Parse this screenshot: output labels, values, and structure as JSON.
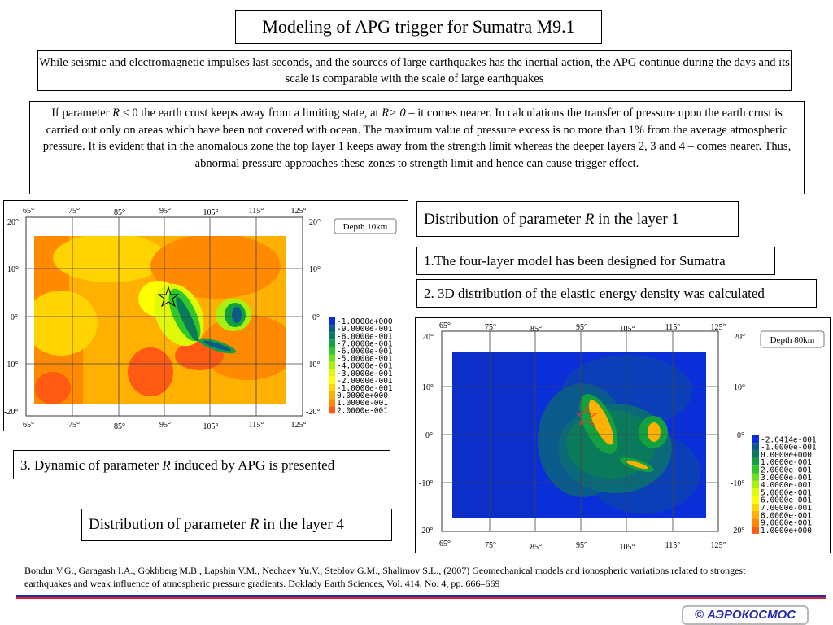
{
  "title": "Modeling of APG trigger for Sumatra M9.1",
  "intro": "While seismic and electromagnetic impulses last seconds, and the sources of large earthquakes has the inertial action, the APG  continue during the days and its scale is comparable with the scale of large earthquakes",
  "explain": {
    "p1": "If parameter ",
    "r1": "R",
    "p2": " < 0 the earth crust keeps away from a limiting state, at ",
    "r2": "R> 0",
    "p3": " – it comes nearer. In calculations the transfer of pressure upon the earth crust is carried out only on areas which have been not covered with ocean. The maximum value of pressure excess is no more than 1% from the average atmospheric pressure. It is evident that in the anomalous zone the top layer 1 keeps away from the strength limit whereas the deeper layers 2, 3 and 4 – comes nearer. Thus, abnormal pressure approaches these zones to strength limit and hence can cause trigger effect."
  },
  "captions": {
    "layer1_pre": "Distribution of parameter ",
    "layer1_r": "R",
    "layer1_post": " in the layer 1",
    "step1": "1.The four-layer model has been designed for Sumatra",
    "step2": "2. 3D distribution of the elastic energy density was calculated",
    "step3_pre": "3. Dynamic of parameter ",
    "step3_r": "R",
    "step3_post": " induced by APG is presented",
    "layer4_pre": "Distribution of parameter ",
    "layer4_r": "R",
    "layer4_post": " in the layer 4"
  },
  "maps": {
    "map1": {
      "depth_label": "Depth 10km",
      "lon_ticks": [
        "65°",
        "75°",
        "85°",
        "95°",
        "105°",
        "115°",
        "125°"
      ],
      "lat_ticks": [
        "20°",
        "10°",
        "0°",
        "-10°",
        "-20°"
      ],
      "legend": [
        "-1.0000e+000",
        "-9.0000e-001",
        "-8.0000e-001",
        "-7.0000e-001",
        "-6.0000e-001",
        "-5.0000e-001",
        "-4.0000e-001",
        "-3.0000e-001",
        "-2.0000e-001",
        "-1.0000e-001",
        "0.0000e+000",
        "1.0000e-001",
        "2.0000e-001"
      ],
      "legend_colors": [
        "#0a2fd8",
        "#0a5a8c",
        "#0b7a5a",
        "#12a040",
        "#2ec82a",
        "#6fe01e",
        "#a8f010",
        "#e0f80a",
        "#ffff00",
        "#ffd400",
        "#ffb000",
        "#ff8a00",
        "#ff5a14"
      ]
    },
    "map2": {
      "depth_label": "Depth 80km",
      "lon_ticks": [
        "65°",
        "75°",
        "85°",
        "95°",
        "105°",
        "115°",
        "125°"
      ],
      "lat_ticks": [
        "20°",
        "10°",
        "0°",
        "-10°",
        "-20°"
      ],
      "legend": [
        "-2.6414e-001",
        "-1.0000e-001",
        "0.0000e+000",
        "1.0000e-001",
        "2.0000e-001",
        "3.0000e-001",
        "4.0000e-001",
        "5.0000e-001",
        "6.0000e-001",
        "7.0000e-001",
        "8.0000e-001",
        "9.0000e-001",
        "1.0000e+000"
      ],
      "legend_colors": [
        "#0a2fd8",
        "#0a5a8c",
        "#0b7a5a",
        "#12a040",
        "#2ec82a",
        "#6fe01e",
        "#a8f010",
        "#e0f80a",
        "#ffff00",
        "#ffd400",
        "#ffb000",
        "#ff8a00",
        "#ff5a14"
      ]
    }
  },
  "reference": "Bondur V.G., Garagash I.A., Gokhberg M.B., Lapshin V.M., Nechaev Yu.V., Steblov G.M., Shalimov S.L., (2007) Geomechanical models and ionospheric variations related to strongest earthquakes and weak influence of atmospheric pressure gradients. Doklady Earth Sciences, Vol. 414, No. 4, pp. 666–669",
  "stripe_colors": [
    "#ffffff",
    "#1a2fb0",
    "#e02020"
  ],
  "logo_text": "© АЭРОКОСМОС"
}
